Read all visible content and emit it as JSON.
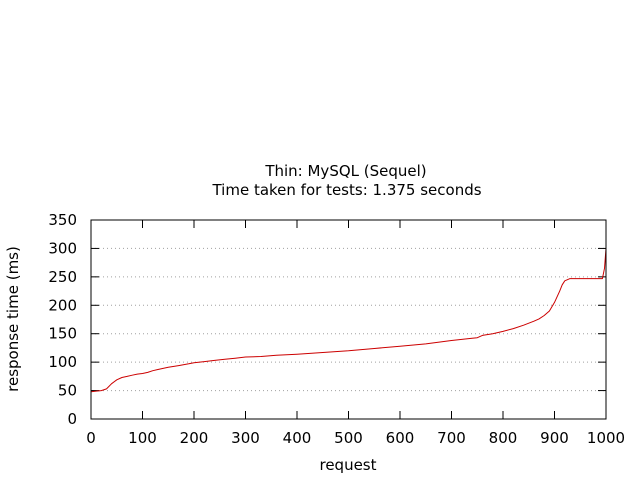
{
  "chart_data": {
    "type": "line",
    "title": "Thin: MySQL (Sequel)",
    "subtitle": "Time taken for tests: 1.375 seconds",
    "xlabel": "request",
    "ylabel": "response time (ms)",
    "xlim": [
      0,
      1000
    ],
    "ylim": [
      0,
      350
    ],
    "xticks": [
      0,
      100,
      200,
      300,
      400,
      500,
      600,
      700,
      800,
      900,
      1000
    ],
    "yticks": [
      0,
      50,
      100,
      150,
      200,
      250,
      300,
      350
    ],
    "grid": "horizontal-dotted",
    "line_color": "#cc0000",
    "series": [
      {
        "x": [
          0,
          10,
          20,
          30,
          40,
          50,
          60,
          70,
          80,
          90,
          100,
          110,
          120,
          130,
          140,
          150,
          170,
          190,
          200,
          220,
          240,
          260,
          280,
          300,
          330,
          360,
          400,
          450,
          500,
          550,
          600,
          650,
          700,
          740,
          750,
          760,
          780,
          800,
          820,
          840,
          860,
          870,
          880,
          890,
          900,
          910,
          915,
          920,
          930,
          940,
          960,
          980,
          993,
          997,
          1000
        ],
        "y": [
          48,
          49,
          50,
          53,
          62,
          69,
          73,
          75,
          77,
          79,
          80,
          82,
          85,
          87,
          89,
          91,
          94,
          97,
          99,
          101,
          103,
          105,
          107,
          109,
          110,
          112,
          114,
          117,
          120,
          124,
          128,
          132,
          138,
          142,
          143,
          147,
          150,
          154,
          159,
          165,
          172,
          176,
          182,
          190,
          205,
          225,
          236,
          243,
          247,
          247,
          247,
          247,
          247,
          265,
          300
        ]
      }
    ]
  }
}
